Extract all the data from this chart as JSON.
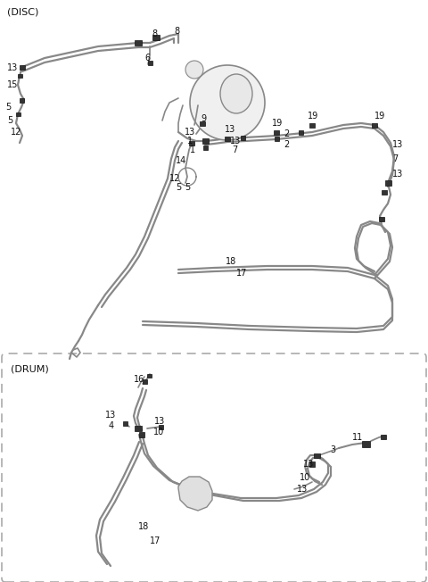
{
  "bg_color": "#ffffff",
  "lc": "#888888",
  "dc": "#111111",
  "fig_w": 4.8,
  "fig_h": 6.52,
  "dpi": 100,
  "disc_label": "(DISC)",
  "drum_label": "(DRUM)"
}
